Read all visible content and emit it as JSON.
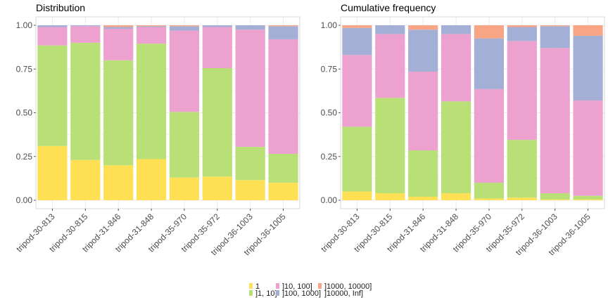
{
  "colors": {
    "l1": "#ffe055",
    "l2": "#b8e076",
    "l3": "#eda1cf",
    "l4": "#a4afd6",
    "l5": "#f8a585",
    "grid": "#ebebeb",
    "axis": "#4d4d4d",
    "frame": "#d9d9d9"
  },
  "legend": {
    "items": [
      {
        "label": "1",
        "key": "l1"
      },
      {
        "label": "]1, 10]",
        "key": "l2"
      },
      {
        "label": "]10, 100]",
        "key": "l3"
      },
      {
        "label": "]100, 1000]",
        "key": "l4"
      },
      {
        "label": "]1000, 10000]",
        "key": "l5"
      },
      {
        "label": "]10000, Inf]",
        "key": "l6"
      }
    ]
  },
  "chart_data": [
    {
      "type": "bar",
      "stacked": true,
      "title": "Distribution",
      "xlabel": "",
      "ylabel": "",
      "ylim": [
        0,
        1
      ],
      "yticks": [
        "0.00",
        "0.25",
        "0.50",
        "0.75",
        "1.00"
      ],
      "categories": [
        "tripod-30-813",
        "tripod-30-815",
        "tripod-31-846",
        "tripod-31-848",
        "tripod-35-970",
        "tripod-35-972",
        "tripod-36-1003",
        "tripod-36-1005"
      ],
      "series": [
        {
          "key": "l1",
          "values": [
            0.31,
            0.23,
            0.2,
            0.235,
            0.13,
            0.135,
            0.115,
            0.1
          ]
        },
        {
          "key": "l2",
          "values": [
            0.575,
            0.67,
            0.6,
            0.66,
            0.375,
            0.62,
            0.19,
            0.165
          ]
        },
        {
          "key": "l3",
          "values": [
            0.105,
            0.095,
            0.18,
            0.095,
            0.465,
            0.235,
            0.67,
            0.655
          ]
        },
        {
          "key": "l4",
          "values": [
            0.01,
            0.005,
            0.01,
            0.005,
            0.025,
            0.01,
            0.025,
            0.075
          ]
        },
        {
          "key": "l5",
          "values": [
            0.0,
            0.0,
            0.01,
            0.005,
            0.005,
            0.0,
            0.0,
            0.005
          ]
        }
      ]
    },
    {
      "type": "bar",
      "stacked": true,
      "title": "Cumulative frequency",
      "xlabel": "",
      "ylabel": "",
      "ylim": [
        0,
        1
      ],
      "yticks": [
        "0.00",
        "0.25",
        "0.50",
        "0.75",
        "1.00"
      ],
      "categories": [
        "tripod-30-813",
        "tripod-30-815",
        "tripod-31-846",
        "tripod-31-848",
        "tripod-35-970",
        "tripod-35-972",
        "tripod-36-1003",
        "tripod-36-1005"
      ],
      "series": [
        {
          "key": "l1",
          "values": [
            0.05,
            0.04,
            0.02,
            0.04,
            0.01,
            0.015,
            0.005,
            0.005
          ]
        },
        {
          "key": "l2",
          "values": [
            0.37,
            0.545,
            0.265,
            0.525,
            0.09,
            0.33,
            0.035,
            0.02
          ]
        },
        {
          "key": "l3",
          "values": [
            0.41,
            0.365,
            0.45,
            0.385,
            0.535,
            0.565,
            0.83,
            0.545
          ]
        },
        {
          "key": "l4",
          "values": [
            0.155,
            0.05,
            0.24,
            0.05,
            0.29,
            0.08,
            0.125,
            0.37
          ]
        },
        {
          "key": "l5",
          "values": [
            0.015,
            0.0,
            0.025,
            0.0,
            0.075,
            0.01,
            0.005,
            0.06
          ]
        }
      ]
    }
  ]
}
